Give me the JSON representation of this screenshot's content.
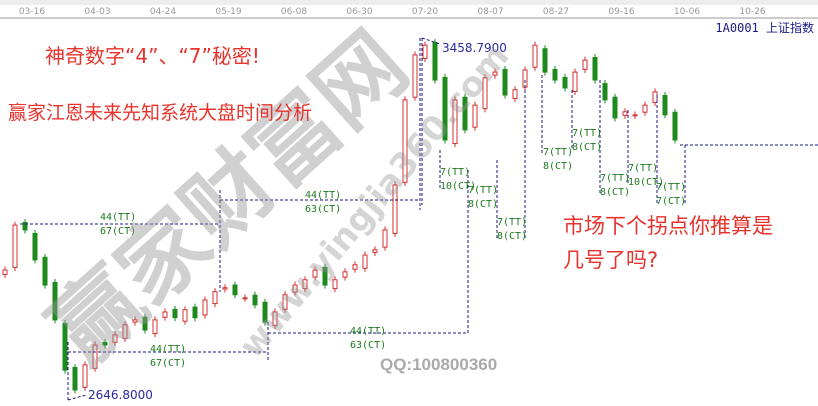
{
  "header": {
    "symbol": "1A0001 上证指数"
  },
  "annotations": {
    "title1": "神奇数字“4”、“7”秘密!",
    "title2": "赢家江恩未来先知系统大盘时间分析",
    "question1": "市场下个拐点你推算是",
    "question2": "几号了吗?",
    "watermark": "赢家财富网",
    "watermark_url": "www.yingjia360.com",
    "qq": "QQ:100800360"
  },
  "chart_data": {
    "type": "candlestick",
    "x_ticks": [
      "03-16",
      "04-03",
      "04-24",
      "05-19",
      "06-08",
      "06-30",
      "07-20",
      "08-07",
      "08-27",
      "09-16",
      "10-06",
      "10-26"
    ],
    "close": [
      2937,
      3039,
      3028,
      2960,
      2903,
      2824,
      2710,
      2665,
      2722,
      2767,
      2767,
      2790,
      2813,
      2824,
      2801,
      2824,
      2842,
      2829,
      2847,
      2829,
      2869,
      2888,
      2897,
      2881,
      2874,
      2858,
      2819,
      2842,
      2881,
      2903,
      2915,
      2937,
      2903,
      2915,
      2933,
      2949,
      2971,
      2983,
      3028,
      3130,
      3323,
      3425,
      3447,
      3368,
      3232,
      3323,
      3255,
      3311,
      3373,
      3386,
      3334,
      3346,
      3391,
      3447,
      3386,
      3368,
      3350,
      3386,
      3413,
      3368,
      3323,
      3282,
      3296,
      3289,
      3311,
      3341,
      3289,
      3232
    ],
    "high_label": "3458.7900",
    "low_label": "2646.8000",
    "high": 3458.79,
    "low": 2646.8,
    "cycle_labels": [
      {
        "tt": "44(TT)",
        "ct": "67(CT)"
      },
      {
        "tt": "44(TT)",
        "ct": "63(CT)"
      },
      {
        "tt": "44(TT)",
        "ct": "67(CT)"
      },
      {
        "tt": "44(TT)",
        "ct": "63(CT)"
      },
      {
        "tt": "7(TT)",
        "ct": "10(CT)"
      },
      {
        "tt": "7(TT)",
        "ct": "8(CT)"
      },
      {
        "tt": "7(TT)",
        "ct": "8(CT)"
      },
      {
        "tt": "7(TT)",
        "ct": "8(CT)"
      },
      {
        "tt": "7(TT)",
        "ct": "8(CT)"
      },
      {
        "tt": "7(TT)",
        "ct": "8(CT)"
      },
      {
        "tt": "7(TT)",
        "ct": "10(CT)"
      },
      {
        "tt": "7(TT)",
        "ct": "7(CT)"
      }
    ],
    "colors": {
      "up": "#d43030",
      "down": "#1e8a1e",
      "cycle_line": "#1a1a80",
      "cycle_text": "#1e7a1e"
    }
  }
}
